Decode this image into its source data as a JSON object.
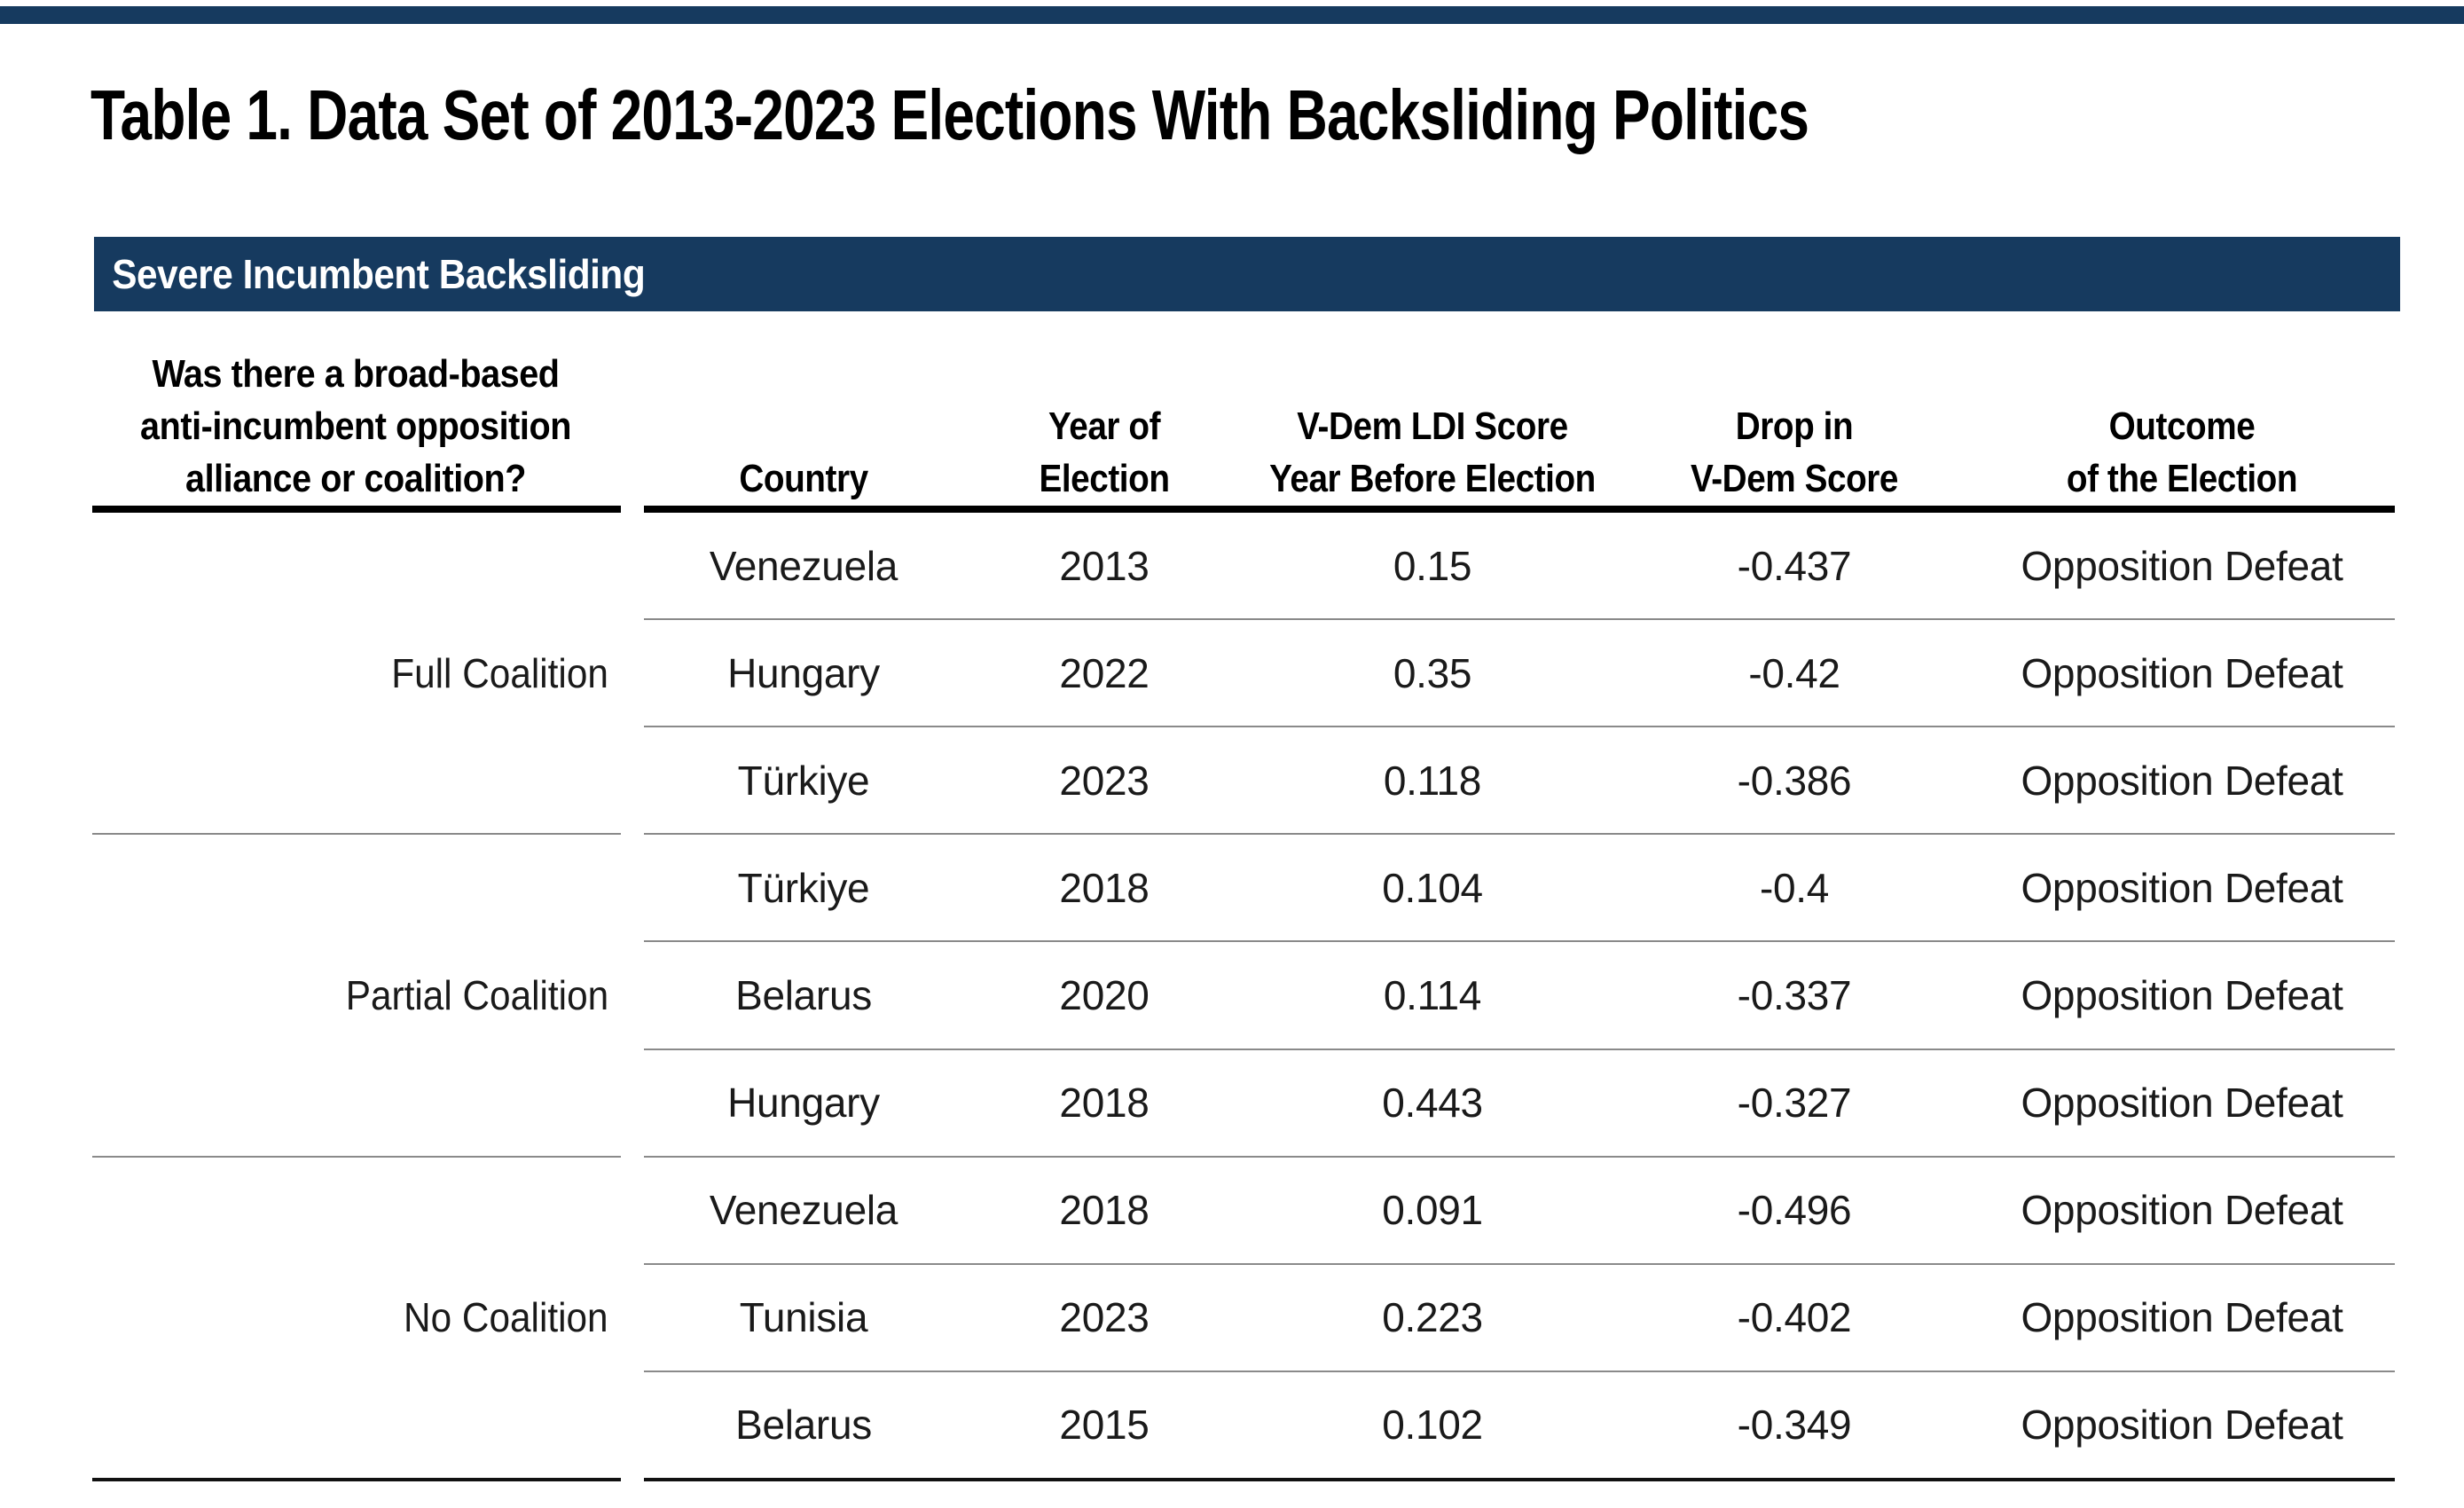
{
  "page": {
    "title": "Table 1. Data Set of 2013-2023 Elections With Backsliding Politics",
    "banner": "Severe Incumbent Backsliding",
    "colors": {
      "navy": "#163A5F",
      "line_soft": "#8A8A8A",
      "line_strong": "#111111"
    }
  },
  "table": {
    "question_header": [
      "Was there a broad-based",
      "anti-incumbent opposition",
      "alliance or coalition?"
    ],
    "columns": [
      {
        "id": "country",
        "label_top": "",
        "label_bottom": "Country"
      },
      {
        "id": "year",
        "label_top": "Year of",
        "label_bottom": "Election"
      },
      {
        "id": "ldi",
        "label_top": "V-Dem LDI Score",
        "label_bottom": "Year Before Election"
      },
      {
        "id": "drop",
        "label_top": "Drop in",
        "label_bottom": "V-Dem Score"
      },
      {
        "id": "outcome",
        "label_top": "Outcome",
        "label_bottom": "of the Election"
      }
    ],
    "groups": [
      {
        "label": "Full Coalition",
        "rows": [
          [
            "Venezuela",
            "2013",
            "0.15",
            "-0.437",
            "Opposition Defeat"
          ],
          [
            "Hungary",
            "2022",
            "0.35",
            "-0.42",
            "Opposition Defeat"
          ],
          [
            "Türkiye",
            "2023",
            "0.118",
            "-0.386",
            "Opposition Defeat"
          ]
        ]
      },
      {
        "label": "Partial Coalition",
        "rows": [
          [
            "Türkiye",
            "2018",
            "0.104",
            "-0.4",
            "Opposition Defeat"
          ],
          [
            "Belarus",
            "2020",
            "0.114",
            "-0.337",
            "Opposition Defeat"
          ],
          [
            "Hungary",
            "2018",
            "0.443",
            "-0.327",
            "Opposition Defeat"
          ]
        ]
      },
      {
        "label": "No Coalition",
        "rows": [
          [
            "Venezuela",
            "2018",
            "0.091",
            "-0.496",
            "Opposition Defeat"
          ],
          [
            "Tunisia",
            "2023",
            "0.223",
            "-0.402",
            "Opposition Defeat"
          ],
          [
            "Belarus",
            "2015",
            "0.102",
            "-0.349",
            "Opposition Defeat"
          ]
        ]
      }
    ]
  }
}
